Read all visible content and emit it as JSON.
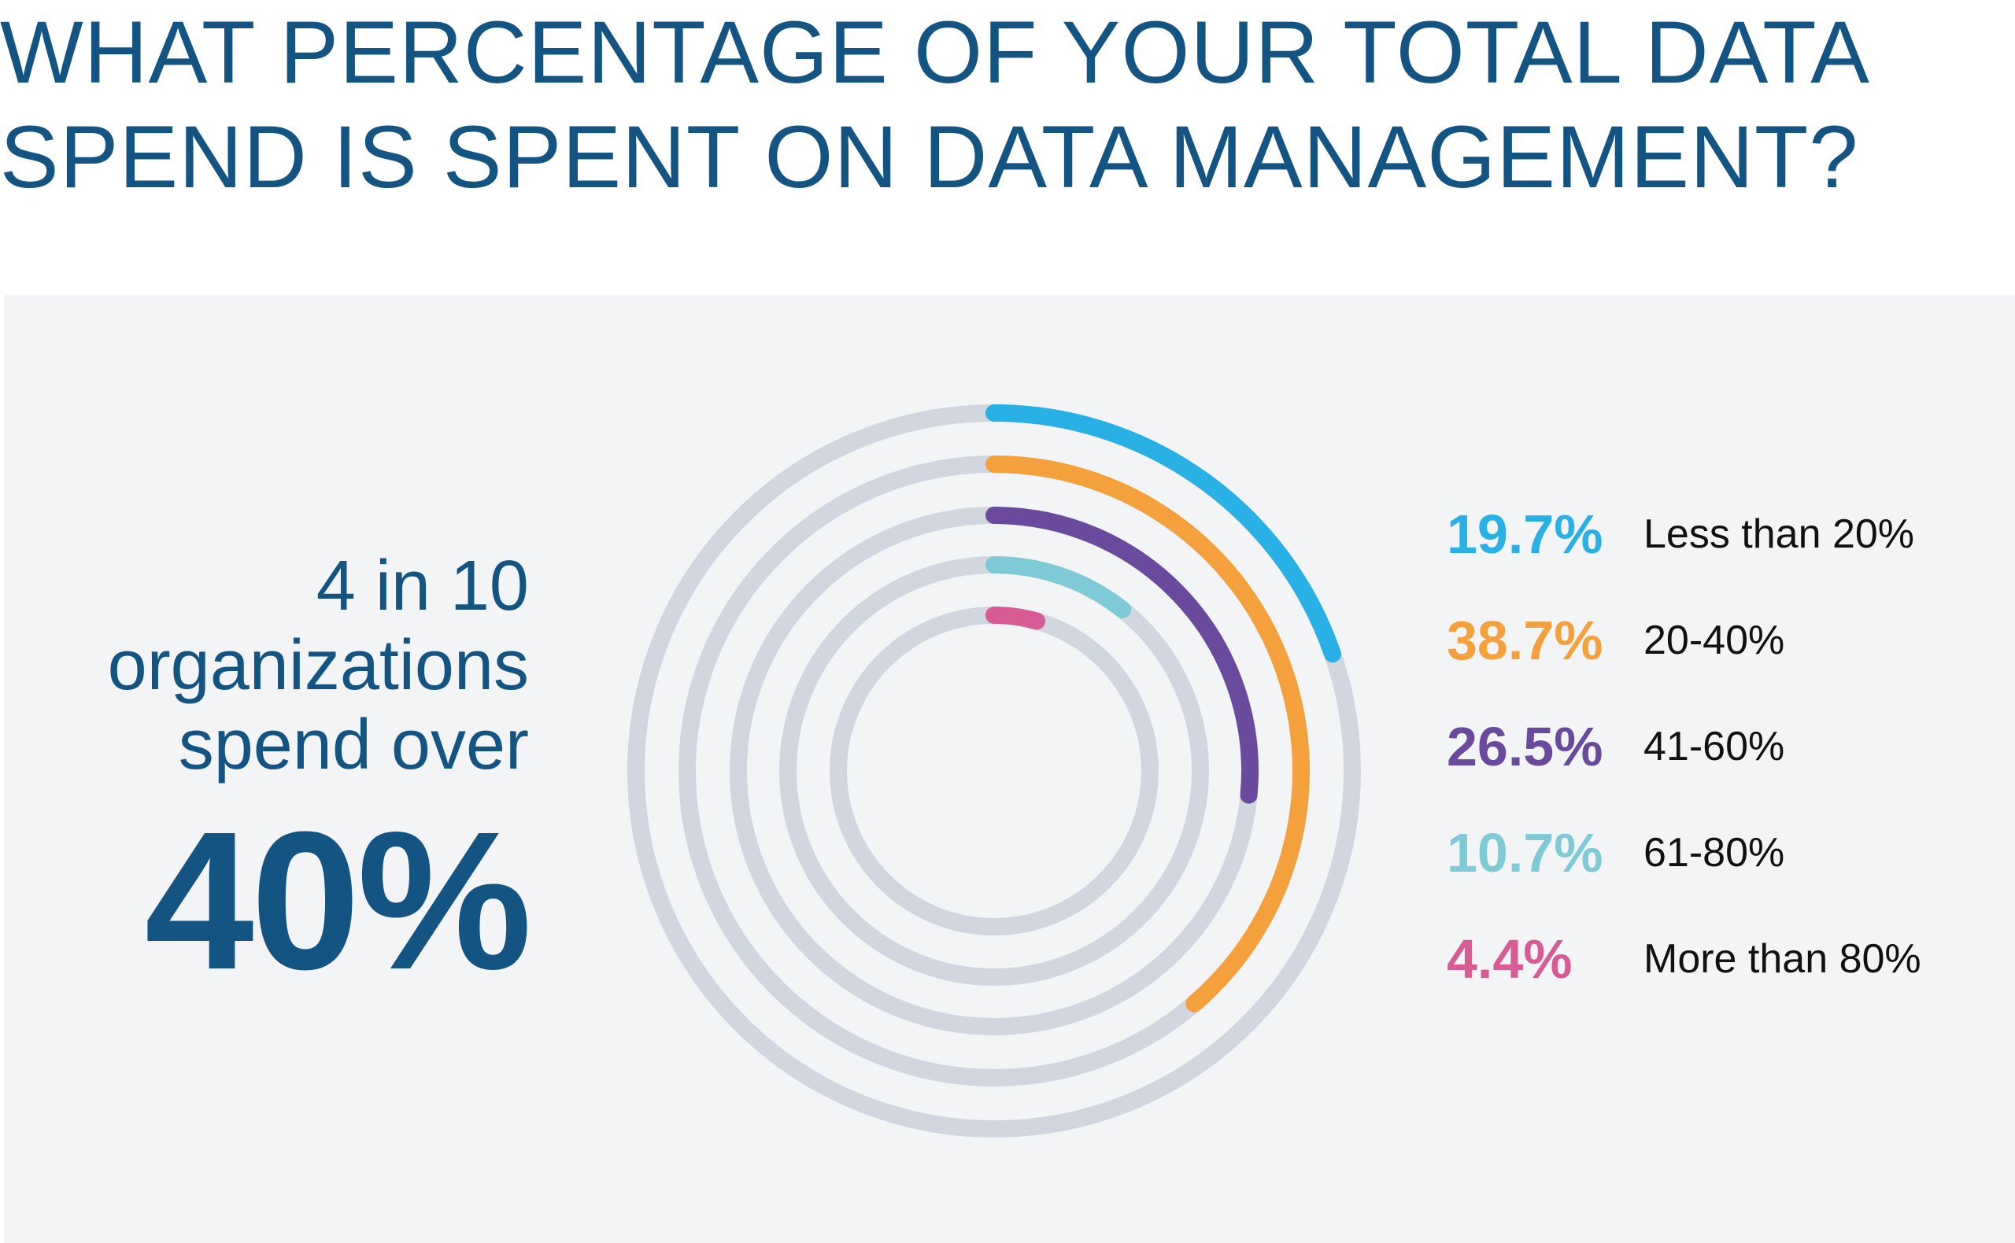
{
  "title_lines": [
    "WHAT PERCENTAGE OF YOUR TOTAL DATA",
    "SPEND IS SPENT ON DATA MANAGEMENT?"
  ],
  "callout": {
    "lines": [
      "4 in 10",
      "organizations",
      "spend over"
    ],
    "big_number": "40%"
  },
  "colors": {
    "title": "#135482",
    "panel_background": "#f3f4f6",
    "track": "#d1d6df"
  },
  "chart_data": {
    "type": "radial-bar",
    "title": "WHAT PERCENTAGE OF YOUR TOTAL DATA SPEND IS SPENT ON DATA MANAGEMENT?",
    "scale_max_percent": 100,
    "categories": [
      "Less than 20%",
      "20-40%",
      "41-60%",
      "61-80%",
      "More than 80%"
    ],
    "values": [
      19.7,
      38.7,
      26.5,
      10.7,
      4.4
    ],
    "value_labels": [
      "19.7%",
      "38.7%",
      "26.5%",
      "10.7%",
      "4.4%"
    ],
    "colors": [
      "#29b1e6",
      "#f4a13d",
      "#6a4a9c",
      "#7ecbd7",
      "#d75c95"
    ],
    "legend_placement": "right",
    "grid": false
  }
}
